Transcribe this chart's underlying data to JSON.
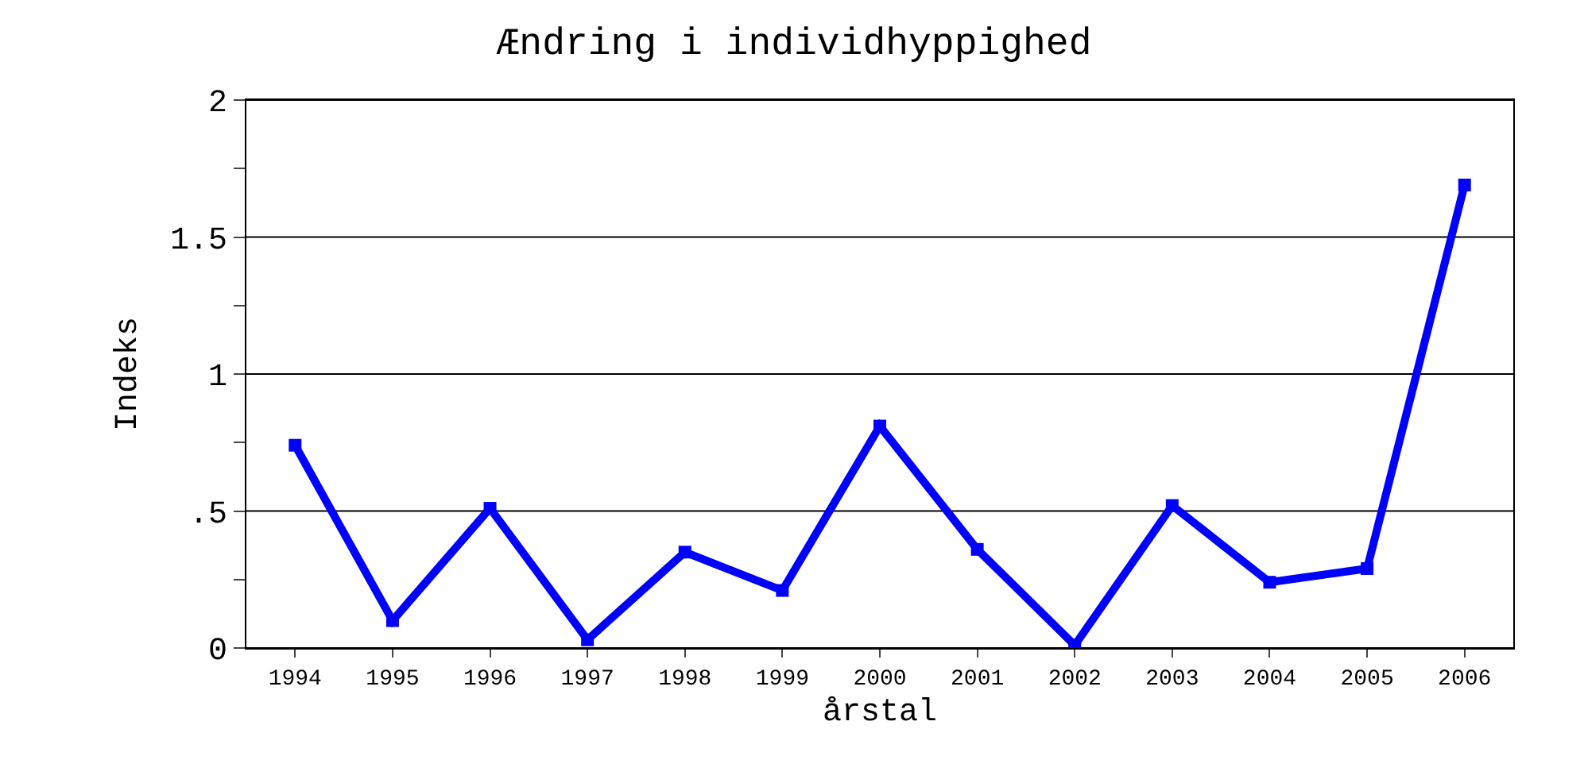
{
  "chart_data": {
    "type": "line",
    "title": "Ændring i individhyppighed",
    "xlabel": "årstal",
    "ylabel": "Indeks",
    "categories": [
      "1994",
      "1995",
      "1996",
      "1997",
      "1998",
      "1999",
      "2000",
      "2001",
      "2002",
      "2003",
      "2004",
      "2005",
      "2006"
    ],
    "series": [
      {
        "color": "#0000ff",
        "values": [
          0.74,
          0.1,
          0.51,
          0.03,
          0.35,
          0.21,
          0.81,
          0.36,
          0.01,
          0.52,
          0.24,
          0.29,
          1.69
        ]
      }
    ],
    "ylim": [
      0,
      2
    ],
    "yticks": [
      0,
      {
        "value": 0.25,
        "label": null
      },
      {
        "value": 0.5,
        "label": ".5"
      },
      {
        "value": 0.75,
        "label": null
      },
      1,
      {
        "value": 1.25,
        "label": null
      },
      1.5,
      {
        "value": 1.75,
        "label": null
      },
      2
    ],
    "grid": "y",
    "marker": "square",
    "line_style": "solid"
  }
}
